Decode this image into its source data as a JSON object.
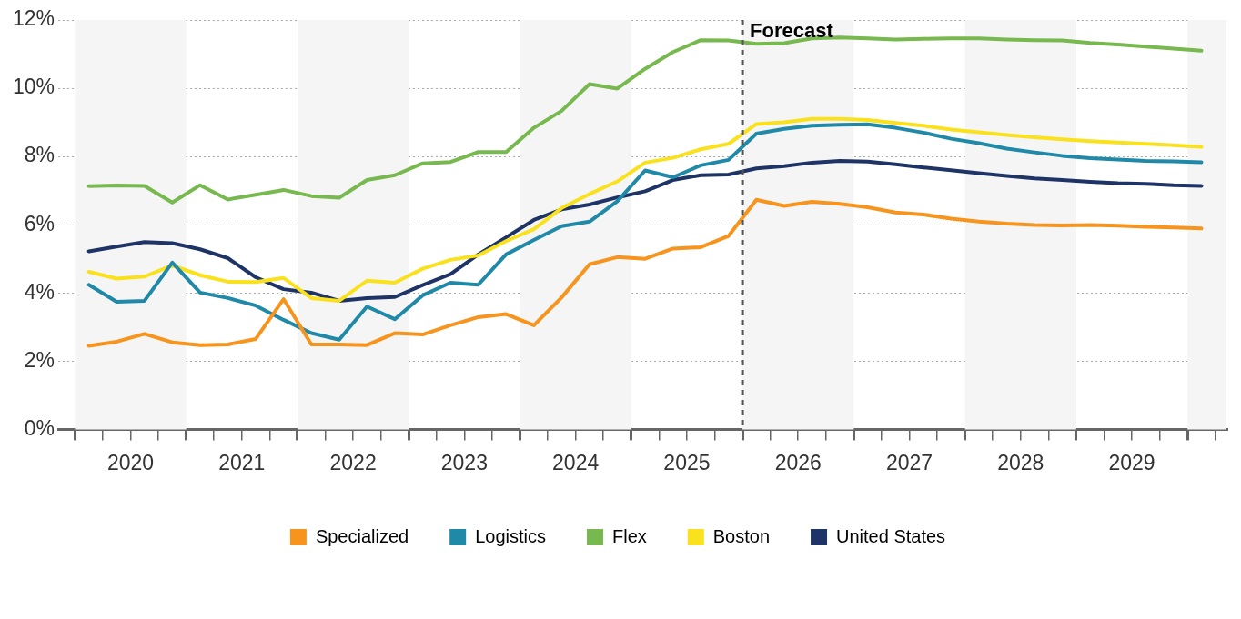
{
  "chart_data": {
    "type": "line",
    "x": [
      2020.125,
      2020.375,
      2020.625,
      2020.875,
      2021.125,
      2021.375,
      2021.625,
      2021.875,
      2022.125,
      2022.375,
      2022.625,
      2022.875,
      2023.125,
      2023.375,
      2023.625,
      2023.875,
      2024.125,
      2024.375,
      2024.625,
      2024.875,
      2025.125,
      2025.375,
      2025.625,
      2025.875,
      2026.125,
      2026.375,
      2026.625,
      2026.875,
      2027.125,
      2027.375,
      2027.625,
      2027.875,
      2028.125,
      2028.375,
      2028.625,
      2028.875,
      2029.125,
      2029.375,
      2029.625,
      2029.875,
      2030.125
    ],
    "series": [
      {
        "name": "Specialized",
        "color": "#f7941d",
        "values": [
          2.45,
          2.57,
          2.8,
          2.55,
          2.47,
          2.49,
          2.65,
          3.82,
          2.49,
          2.49,
          2.47,
          2.82,
          2.78,
          3.05,
          3.29,
          3.38,
          3.05,
          3.87,
          4.84,
          5.05,
          5.0,
          5.3,
          5.34,
          5.67,
          6.73,
          6.55,
          6.67,
          6.61,
          6.51,
          6.36,
          6.3,
          6.18,
          6.09,
          6.03,
          5.99,
          5.98,
          5.99,
          5.97,
          5.94,
          5.92,
          5.89
        ]
      },
      {
        "name": "Logistics",
        "color": "#2089a8",
        "values": [
          4.24,
          3.74,
          3.77,
          4.89,
          4.01,
          3.85,
          3.63,
          3.21,
          2.82,
          2.63,
          3.6,
          3.23,
          3.93,
          4.3,
          4.24,
          5.13,
          5.55,
          5.96,
          6.09,
          6.69,
          7.59,
          7.39,
          7.74,
          7.9,
          8.67,
          8.81,
          8.9,
          8.93,
          8.94,
          8.84,
          8.7,
          8.52,
          8.39,
          8.23,
          8.12,
          8.02,
          7.95,
          7.91,
          7.87,
          7.86,
          7.83
        ]
      },
      {
        "name": "Flex",
        "color": "#77b84f",
        "values": [
          7.13,
          7.15,
          7.14,
          6.65,
          7.16,
          6.74,
          6.88,
          7.02,
          6.84,
          6.79,
          7.31,
          7.45,
          7.8,
          7.84,
          8.13,
          8.13,
          8.84,
          9.34,
          10.12,
          9.99,
          10.57,
          11.06,
          11.41,
          11.4,
          11.3,
          11.32,
          11.46,
          11.49,
          11.46,
          11.43,
          11.45,
          11.46,
          11.46,
          11.43,
          11.41,
          11.4,
          11.33,
          11.28,
          11.22,
          11.16,
          11.1
        ]
      },
      {
        "name": "Boston",
        "color": "#f9e11e",
        "values": [
          4.62,
          4.42,
          4.48,
          4.81,
          4.52,
          4.33,
          4.32,
          4.44,
          3.85,
          3.77,
          4.36,
          4.3,
          4.71,
          4.97,
          5.1,
          5.52,
          5.87,
          6.49,
          6.9,
          7.27,
          7.82,
          7.96,
          8.21,
          8.37,
          8.95,
          9.0,
          9.1,
          9.1,
          9.07,
          8.98,
          8.9,
          8.79,
          8.71,
          8.63,
          8.56,
          8.5,
          8.45,
          8.41,
          8.37,
          8.33,
          8.28
        ]
      },
      {
        "name": "United States",
        "color": "#1f3466",
        "values": [
          5.22,
          5.36,
          5.49,
          5.46,
          5.28,
          5.02,
          4.46,
          4.11,
          4.01,
          3.77,
          3.85,
          3.88,
          4.23,
          4.55,
          5.13,
          5.63,
          6.14,
          6.45,
          6.59,
          6.8,
          6.98,
          7.31,
          7.45,
          7.47,
          7.65,
          7.72,
          7.82,
          7.87,
          7.85,
          7.77,
          7.68,
          7.6,
          7.51,
          7.43,
          7.36,
          7.31,
          7.26,
          7.22,
          7.2,
          7.16,
          7.14
        ]
      }
    ],
    "xlim": [
      2019.85,
      2030.35
    ],
    "xticks": [
      {
        "value": 2020,
        "label": null
      },
      {
        "value": 2020.25,
        "label": null
      },
      {
        "value": 2020.5,
        "label": "2020"
      },
      {
        "value": 2020.75,
        "label": null
      },
      {
        "value": 2021,
        "label": null
      },
      {
        "value": 2021.25,
        "label": null
      },
      {
        "value": 2021.5,
        "label": "2021"
      },
      {
        "value": 2021.75,
        "label": null
      },
      {
        "value": 2022,
        "label": null
      },
      {
        "value": 2022.25,
        "label": null
      },
      {
        "value": 2022.5,
        "label": "2022"
      },
      {
        "value": 2022.75,
        "label": null
      },
      {
        "value": 2023,
        "label": null
      },
      {
        "value": 2023.25,
        "label": null
      },
      {
        "value": 2023.5,
        "label": "2023"
      },
      {
        "value": 2023.75,
        "label": null
      },
      {
        "value": 2024,
        "label": null
      },
      {
        "value": 2024.25,
        "label": null
      },
      {
        "value": 2024.5,
        "label": "2024"
      },
      {
        "value": 2024.75,
        "label": null
      },
      {
        "value": 2025,
        "label": null
      },
      {
        "value": 2025.25,
        "label": null
      },
      {
        "value": 2025.5,
        "label": "2025"
      },
      {
        "value": 2025.75,
        "label": null
      },
      {
        "value": 2026,
        "label": null
      },
      {
        "value": 2026.25,
        "label": null
      },
      {
        "value": 2026.5,
        "label": "2026"
      },
      {
        "value": 2026.75,
        "label": null
      },
      {
        "value": 2027,
        "label": null
      },
      {
        "value": 2027.25,
        "label": null
      },
      {
        "value": 2027.5,
        "label": "2027"
      },
      {
        "value": 2027.75,
        "label": null
      },
      {
        "value": 2028,
        "label": null
      },
      {
        "value": 2028.25,
        "label": null
      },
      {
        "value": 2028.5,
        "label": "2028"
      },
      {
        "value": 2028.75,
        "label": null
      },
      {
        "value": 2029,
        "label": null
      },
      {
        "value": 2029.25,
        "label": null
      },
      {
        "value": 2029.5,
        "label": "2029"
      },
      {
        "value": 2029.75,
        "label": null
      },
      {
        "value": 2030,
        "label": null
      },
      {
        "value": 2030.25,
        "label": null
      }
    ],
    "ylim": [
      0,
      12
    ],
    "yticks": [
      {
        "value": 0,
        "label": "0%"
      },
      {
        "value": 2,
        "label": "2%"
      },
      {
        "value": 4,
        "label": "4%"
      },
      {
        "value": 6,
        "label": "6%"
      },
      {
        "value": 8,
        "label": "8%"
      },
      {
        "value": 10,
        "label": "10%"
      },
      {
        "value": 12,
        "label": "12%"
      }
    ],
    "grid": "y",
    "legend": "bottom",
    "marker": "none",
    "line_style": "solid",
    "ref_lines": [
      {
        "axis": "x",
        "value": 2026,
        "label": "Forecast",
        "color": "#555555",
        "line_style": "dashed"
      }
    ],
    "bands": [
      {
        "axis": "x",
        "from": 2020,
        "to": 2021,
        "color": "#f5f5f5"
      },
      {
        "axis": "x",
        "from": 2022,
        "to": 2023,
        "color": "#f5f5f5"
      },
      {
        "axis": "x",
        "from": 2024,
        "to": 2025,
        "color": "#f5f5f5"
      },
      {
        "axis": "x",
        "from": 2026,
        "to": 2027,
        "color": "#f5f5f5"
      },
      {
        "axis": "x",
        "from": 2028,
        "to": 2029,
        "color": "#f5f5f5"
      },
      {
        "axis": "x",
        "from": 2030,
        "to": 2030.35,
        "color": "#f5f5f5"
      }
    ]
  }
}
